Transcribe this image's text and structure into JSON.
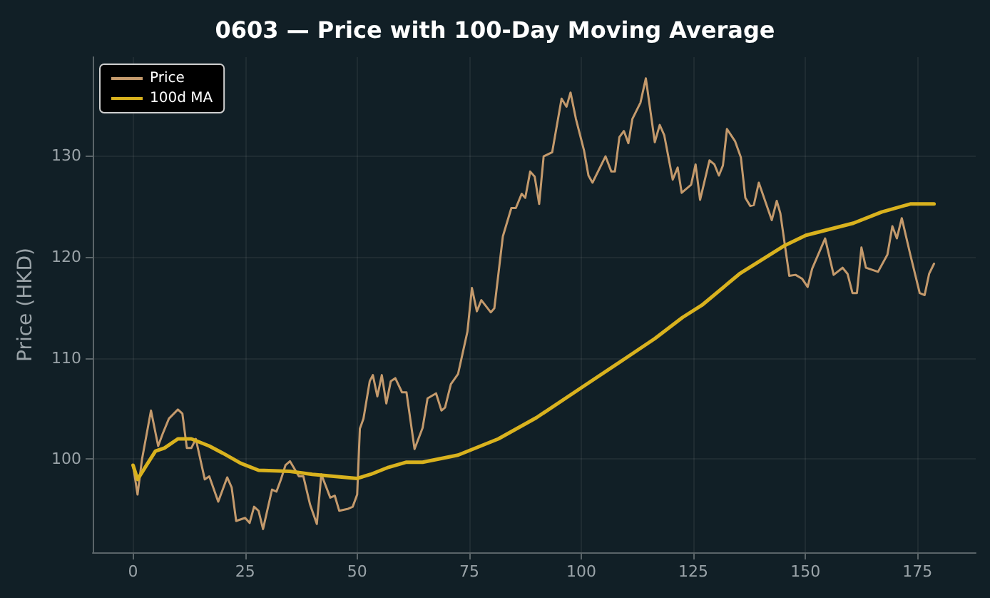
{
  "chart_data": {
    "type": "line",
    "title": "0603 — Price with 100-Day Moving Average",
    "ylabel": "Price (HKD)",
    "xlim": [
      -9,
      188
    ],
    "xticks": [
      0,
      25,
      50,
      75,
      100,
      125,
      150,
      175
    ],
    "ylim": [
      90.8,
      139.7
    ],
    "yticks": [
      100,
      110,
      120,
      130
    ],
    "grid": true,
    "legend": "top left",
    "marker": "none",
    "line_style": "solid",
    "series": [
      {
        "name": "Price",
        "color": "#c49a6c",
        "x": [
          0,
          1,
          2,
          4,
          5.6,
          6.6,
          8,
          10,
          11,
          12,
          13,
          14,
          16,
          17,
          19,
          21,
          22,
          23,
          25,
          26,
          27,
          28,
          29,
          31,
          32,
          33,
          34,
          35,
          37,
          38,
          39.5,
          41,
          42,
          44,
          45,
          46,
          48,
          49,
          50,
          50.6,
          51.4,
          52.8,
          53.5,
          54.5,
          55.5,
          56.5,
          57.5,
          58.5,
          60,
          61,
          62.8,
          64.6,
          65.7,
          67.6,
          68.8,
          69.6,
          70.9,
          72.5,
          74.6,
          75.6,
          76.7,
          77.7,
          79.8,
          80.6,
          82.5,
          84.4,
          85.4,
          86.7,
          87.5,
          88.6,
          89.6,
          90.6,
          91.6,
          93.5,
          95.6,
          96.7,
          97.6,
          98.8,
          100.6,
          101.6,
          102.5,
          105.4,
          106.7,
          107.5,
          108.5,
          109.5,
          110.5,
          111.4,
          113.2,
          114.4,
          116.4,
          117.5,
          118.5,
          120.4,
          121.5,
          122.4,
          124.5,
          125.5,
          126.5,
          128.6,
          129.7,
          130.7,
          131.6,
          132.5,
          134.3,
          135.6,
          136.6,
          137.7,
          138.5,
          139.6,
          142.5,
          143.6,
          144.4,
          146.4,
          147.8,
          149.3,
          150.5,
          151.5,
          154.4,
          156.3,
          158.3,
          159.4,
          160.5,
          161.5,
          162.5,
          163.5,
          166.2,
          168.3,
          169.4,
          170.4,
          171.5,
          173.4,
          175.5,
          176.6,
          177.6,
          178.7
        ],
        "values": [
          99.4,
          96.5,
          100,
          104.8,
          101.3,
          102.5,
          104,
          104.9,
          104.5,
          101.1,
          101.1,
          102,
          98,
          98.3,
          95.8,
          98.2,
          97.2,
          93.9,
          94.2,
          93.7,
          95.3,
          94.9,
          93.1,
          97,
          96.8,
          98,
          99.4,
          99.8,
          98.3,
          98.3,
          95.5,
          93.6,
          98.5,
          96.2,
          96.4,
          94.9,
          95.1,
          95.3,
          96.5,
          103,
          104,
          107.7,
          108.3,
          106.2,
          108.3,
          105.5,
          107.7,
          108,
          106.6,
          106.6,
          101,
          103.1,
          106,
          106.5,
          104.8,
          105.1,
          107.4,
          108.4,
          112.6,
          116.9,
          114.6,
          115.7,
          114.5,
          114.9,
          122,
          124.8,
          124.8,
          126.2,
          125.8,
          128.4,
          127.9,
          125.2,
          129.9,
          130.3,
          135.6,
          134.8,
          136.2,
          133.6,
          130.5,
          128,
          127.3,
          129.9,
          128.4,
          128.4,
          131.8,
          132.4,
          131.2,
          133.6,
          135.2,
          137.6,
          131.3,
          133,
          132,
          127.6,
          128.8,
          126.3,
          127.1,
          129.1,
          125.6,
          129.5,
          129.1,
          128,
          129,
          132.6,
          131.4,
          129.8,
          125.8,
          125,
          125.1,
          127.3,
          123.6,
          125.5,
          124.3,
          118.1,
          118.2,
          117.8,
          117,
          118.8,
          121.8,
          118.2,
          118.9,
          118.3,
          116.4,
          116.4,
          120.9,
          118.9,
          118.5,
          120.2,
          123,
          121.8,
          123.8,
          120.2,
          116.4,
          116.2,
          118.3,
          119.3
        ]
      },
      {
        "name": "100d MA",
        "color": "#d9b21e",
        "x": [
          0,
          1,
          3,
          5,
          7,
          10,
          13,
          17,
          20,
          24,
          28,
          35,
          40,
          50,
          53,
          57,
          61,
          64.6,
          72.5,
          81.5,
          90,
          100.5,
          110,
          116.4,
          122.6,
          126.9,
          135.3,
          145.4,
          150.1,
          160.7,
          167,
          173.4,
          178.7
        ],
        "values": [
          99.4,
          98,
          99.4,
          100.8,
          101.1,
          102,
          102,
          101.3,
          100.6,
          99.6,
          98.9,
          98.8,
          98.5,
          98.1,
          98.5,
          99.2,
          99.7,
          99.7,
          100.4,
          102,
          104.1,
          107.2,
          110,
          111.9,
          114,
          115.2,
          118.3,
          121.1,
          122.1,
          123.3,
          124.4,
          125.2,
          125.2
        ]
      }
    ]
  }
}
